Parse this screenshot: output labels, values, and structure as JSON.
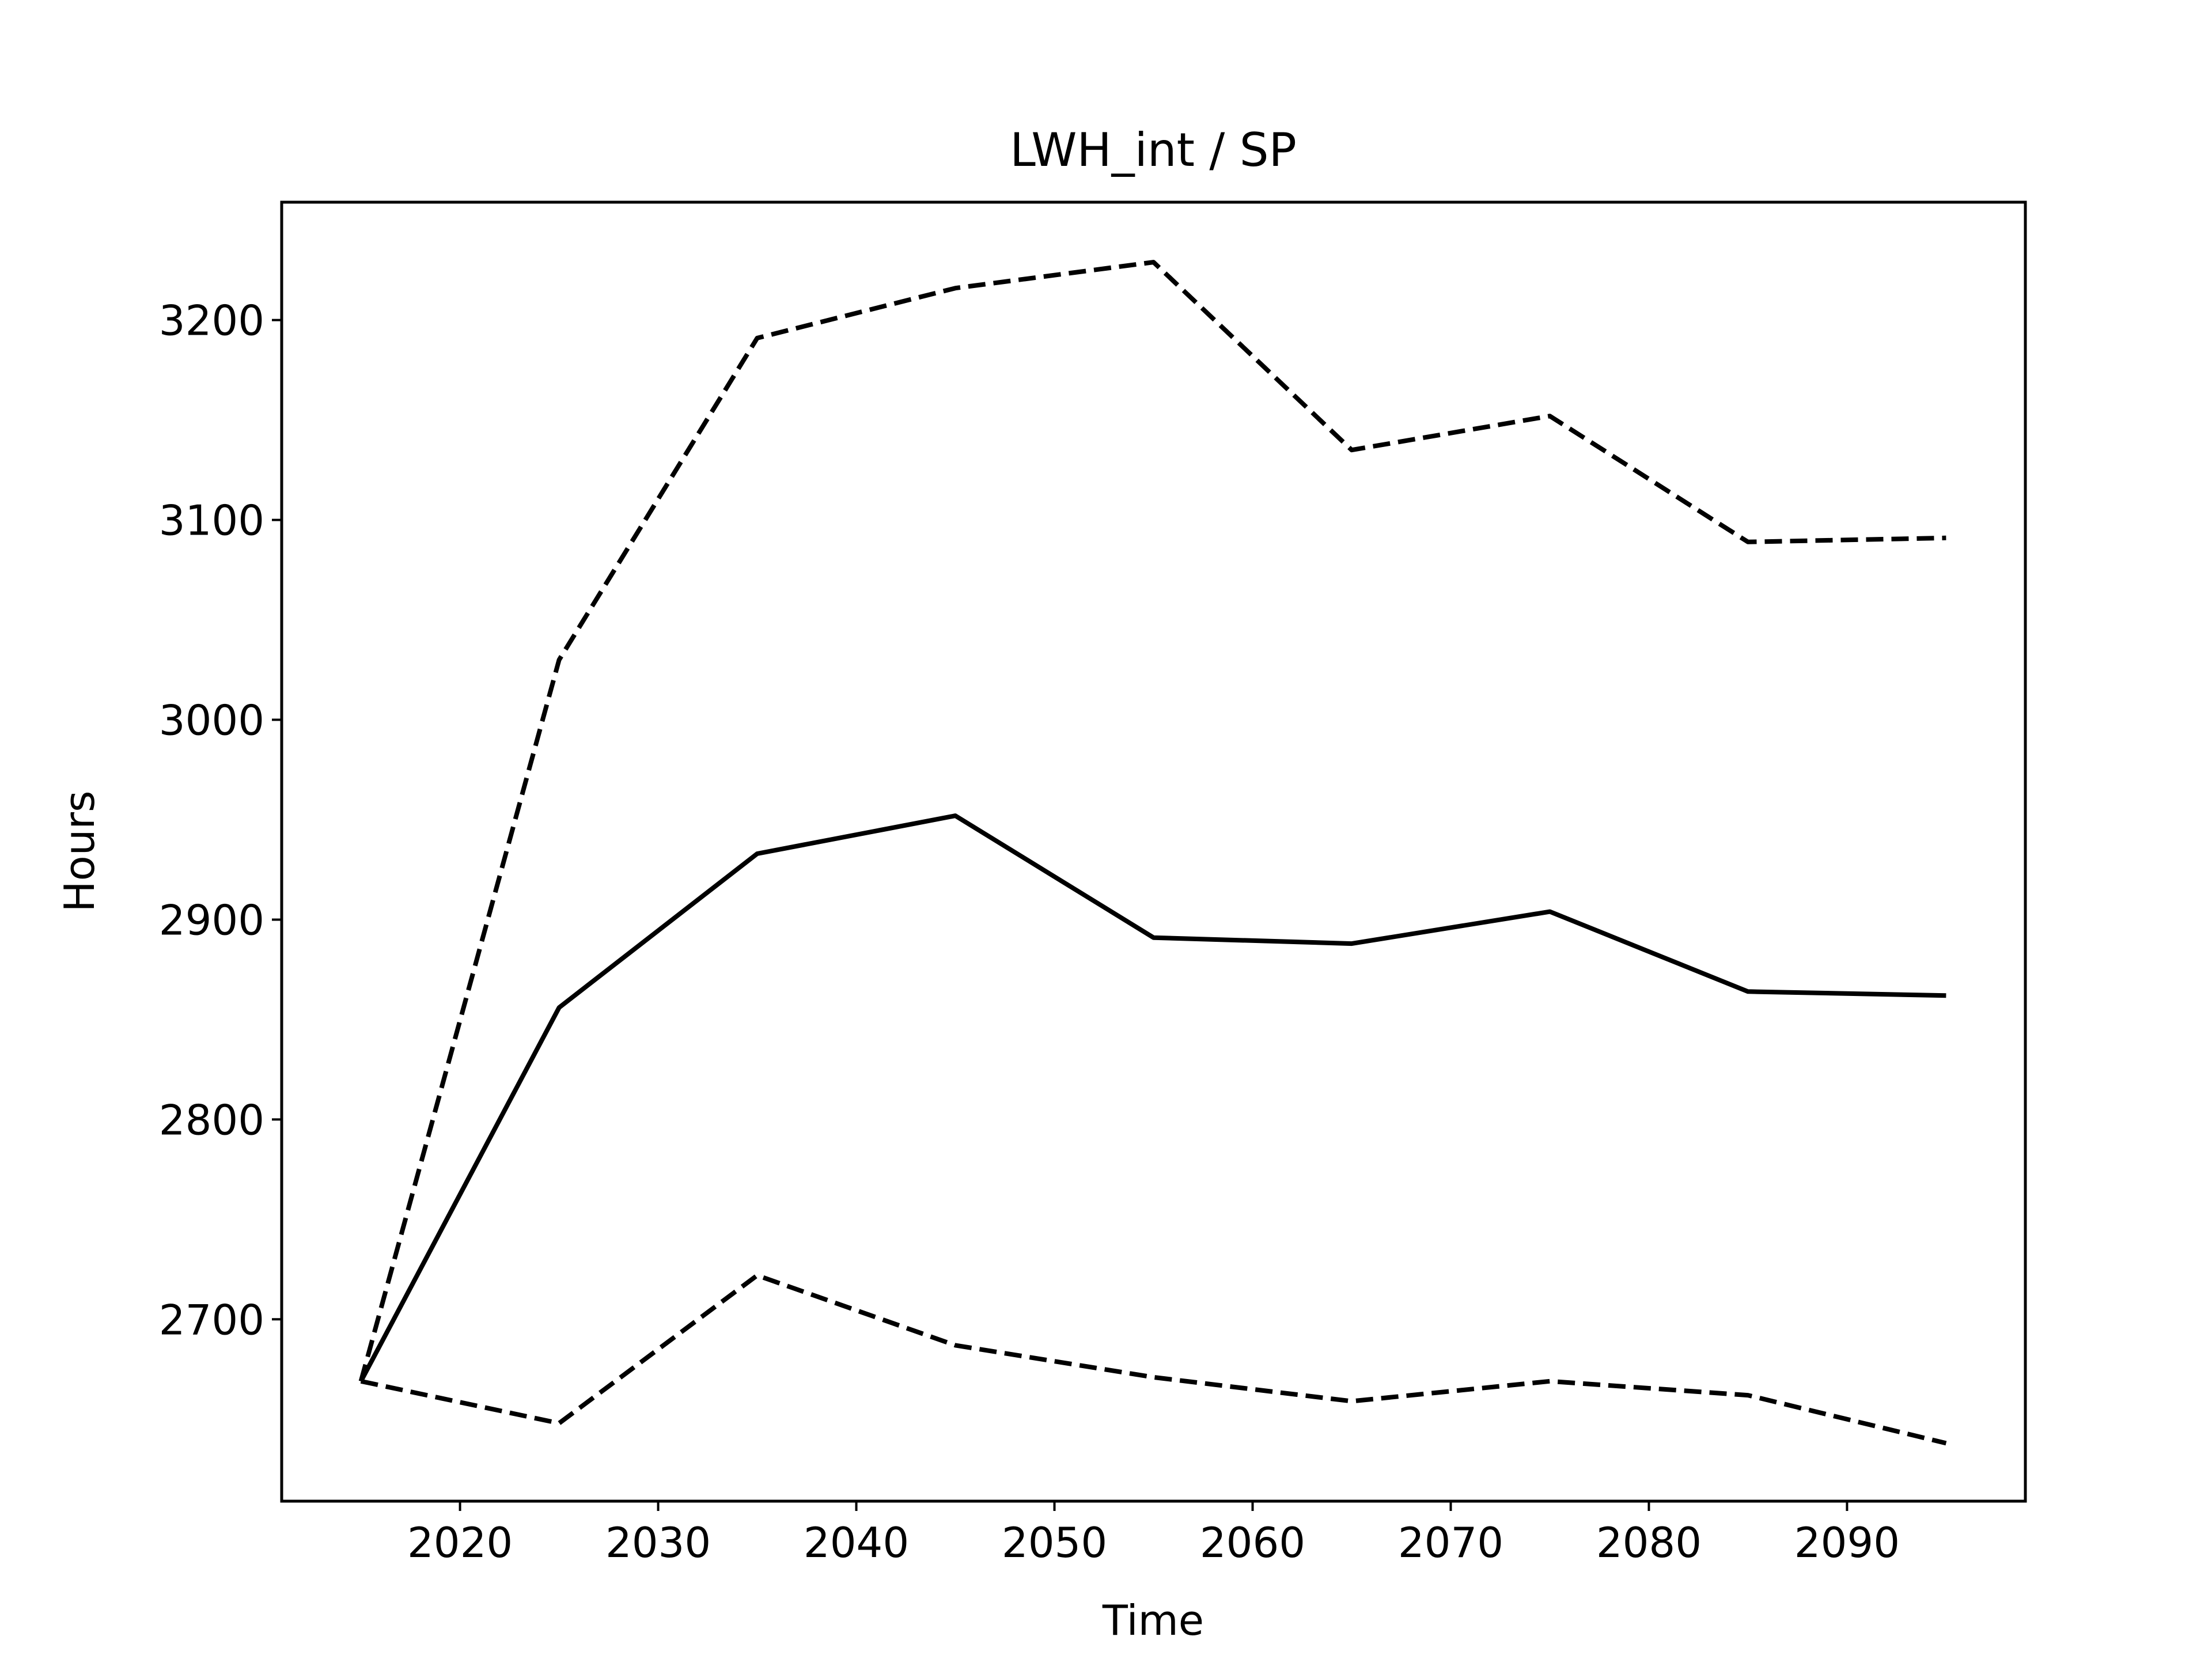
{
  "chart_data": {
    "type": "line",
    "title": "LWH_int / SP",
    "xlabel": "Time",
    "ylabel": "Hours",
    "xlim": [
      2011,
      2099
    ],
    "ylim": [
      2609,
      3259
    ],
    "xticks": [
      2020,
      2030,
      2040,
      2050,
      2060,
      2070,
      2080,
      2090
    ],
    "yticks": [
      2700,
      2800,
      2900,
      3000,
      3100,
      3200
    ],
    "grid": false,
    "legend": "none",
    "x": [
      2015,
      2025,
      2035,
      2045,
      2055,
      2065,
      2075,
      2085,
      2095
    ],
    "series": [
      {
        "style": "solid",
        "color": "#000000",
        "values": [
          2669,
          2856,
          2933,
          2952,
          2891,
          2888,
          2904,
          2864,
          2862
        ]
      },
      {
        "style": "dashed",
        "color": "#000000",
        "values": [
          2669,
          3030,
          3191,
          3216,
          3229,
          3135,
          3152,
          3089,
          3091
        ]
      },
      {
        "style": "dashed",
        "color": "#000000",
        "values": [
          2669,
          2648,
          2722,
          2687,
          2671,
          2659,
          2669,
          2662,
          2638
        ]
      }
    ]
  }
}
